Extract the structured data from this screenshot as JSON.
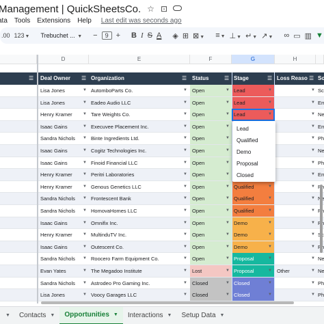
{
  "title": {
    "doc_title": "Management | QuickSheetsCo.",
    "star_icon": "star-icon",
    "move_icon": "folder-move-icon",
    "cloud_icon": "cloud-icon"
  },
  "menu": {
    "items": [
      "ata",
      "Tools",
      "Extensions",
      "Help"
    ],
    "last_edit": "Last edit was seconds ago"
  },
  "toolbar": {
    "number_format": "123",
    "font": "Trebuchet ...",
    "font_size": "9",
    "bold": "B",
    "italic": "I",
    "strike": "S",
    "text_color": "A"
  },
  "columns": {
    "letters": [
      "D",
      "E",
      "F",
      "G",
      "H"
    ]
  },
  "table": {
    "headers": {
      "deal_owner": "Deal Owner",
      "organization": "Organization",
      "status": "Status",
      "stage": "Stage",
      "loss_reason": "Loss Reason",
      "next": "So"
    },
    "rows": [
      {
        "owner": "Lisa Jones",
        "org": "AutomboParts Co.",
        "status": "Open",
        "stage": "Lead",
        "loss": "",
        "next": "Sc"
      },
      {
        "owner": "Lisa Jones",
        "org": "Eadeo Audio LLC",
        "status": "Open",
        "stage": "Lead",
        "loss": "",
        "next": "Em"
      },
      {
        "owner": "Henry Kramer",
        "org": "Tare Weights Co.",
        "status": "Open",
        "stage": "Lead",
        "loss": "",
        "next": "Ne"
      },
      {
        "owner": "Isaac Gains",
        "org": "Execuvee Placement Inc.",
        "status": "Open",
        "stage": "",
        "loss": "",
        "next": "Em"
      },
      {
        "owner": "Sandra Nichols",
        "org": "Binte Ingredients Ltd.",
        "status": "Open",
        "stage": "",
        "loss": "",
        "next": "Ph"
      },
      {
        "owner": "Isaac Gains",
        "org": "Cogitz Technologies Inc.",
        "status": "Open",
        "stage": "",
        "loss": "",
        "next": "Ne"
      },
      {
        "owner": "Isaac Gains",
        "org": "Finoid Financial LLC",
        "status": "Open",
        "stage": "",
        "loss": "",
        "next": "Ph"
      },
      {
        "owner": "Henry Kramer",
        "org": "Peritri Laboratories",
        "status": "Open",
        "stage": "",
        "loss": "",
        "next": "Em"
      },
      {
        "owner": "Henry Kramer",
        "org": "Genous Genetics LLC",
        "status": "Open",
        "stage": "Qualified",
        "loss": "",
        "next": "Ph"
      },
      {
        "owner": "Sandra Nichols",
        "org": "Frontescent Bank",
        "status": "Open",
        "stage": "Qualified",
        "loss": "",
        "next": "Ne"
      },
      {
        "owner": "Sandra Nichols",
        "org": "HomovaHomes LLC",
        "status": "Open",
        "stage": "Qualified",
        "loss": "",
        "next": "Ph"
      },
      {
        "owner": "Isaac Gains",
        "org": "Omnifix Inc.",
        "status": "Open",
        "stage": "Demo",
        "loss": "",
        "next": "Ph"
      },
      {
        "owner": "Henry Kramer",
        "org": "MultinduTV Inc.",
        "status": "Open",
        "stage": "Demo",
        "loss": "",
        "next": "Sc"
      },
      {
        "owner": "Isaac Gains",
        "org": "Outescent Co.",
        "status": "Open",
        "stage": "Demo",
        "loss": "",
        "next": "Ph"
      },
      {
        "owner": "Sandra Nichols",
        "org": "Roocero Farm Equipment Co.",
        "status": "Open",
        "stage": "Proposal",
        "loss": "",
        "next": "Ne"
      },
      {
        "owner": "Evan Yates",
        "org": "The Megadoo Institute",
        "status": "Lost",
        "stage": "Proposal",
        "loss": "Other",
        "next": "Ne"
      },
      {
        "owner": "Sandra Nichols",
        "org": "Astrodeo Pro Gaming Inc.",
        "status": "Closed",
        "stage": "Closed",
        "loss": "",
        "next": "Ph"
      },
      {
        "owner": "Lisa Jones",
        "org": "Voocy Garages LLC",
        "status": "Closed",
        "stage": "Closed",
        "loss": "",
        "next": "Ph"
      }
    ]
  },
  "stage_colors": {
    "Lead": "#ec5b5b",
    "Qualified": "#f37e3f",
    "Demo": "#f7b14a",
    "Proposal": "#16b89f",
    "Closed": "#6f7fd5"
  },
  "dropdown": {
    "options": [
      "Lead",
      "Qualified",
      "Demo",
      "Proposal",
      "Closed"
    ]
  },
  "tabs": {
    "items": [
      "Contacts",
      "Opportunities",
      "Interactions",
      "Setup Data"
    ],
    "active": "Opportunities"
  }
}
